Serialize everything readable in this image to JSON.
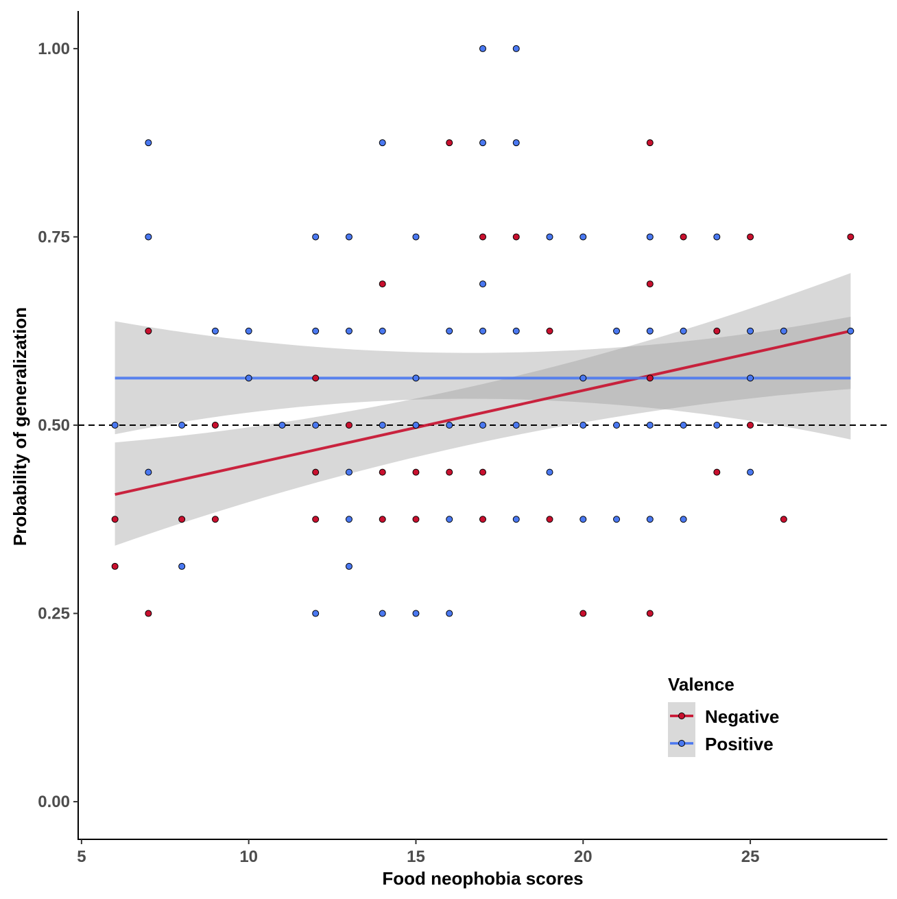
{
  "chart_data": {
    "type": "scatter",
    "title": "",
    "xlabel": "Food neophobia scores",
    "ylabel": "Probability of generalization",
    "xlim": [
      4.9,
      29.1
    ],
    "ylim": [
      -0.05,
      1.05
    ],
    "x_ticks": [
      5,
      10,
      15,
      20,
      25
    ],
    "x_tick_labels": [
      "5",
      "10",
      "15",
      "20",
      "25"
    ],
    "y_ticks": [
      0,
      0.25,
      0.5,
      0.75,
      1.0
    ],
    "y_tick_labels": [
      "0.00",
      "0.25",
      "0.50",
      "0.75",
      "1.00"
    ],
    "grid": false,
    "reference_line": {
      "y": 0.5,
      "style": "dashed"
    },
    "legend": {
      "title": "Valence",
      "position": "bottom-right"
    },
    "series": [
      {
        "name": "Negative",
        "color": "#c8102e",
        "points": [
          [
            6,
            0.375
          ],
          [
            6,
            0.3125
          ],
          [
            7,
            0.625
          ],
          [
            7,
            0.25
          ],
          [
            8,
            0.375
          ],
          [
            9,
            0.5
          ],
          [
            9,
            0.375
          ],
          [
            12,
            0.5625
          ],
          [
            12,
            0.4375
          ],
          [
            12,
            0.375
          ],
          [
            13,
            0.5
          ],
          [
            14,
            0.6875
          ],
          [
            14,
            0.4375
          ],
          [
            14,
            0.375
          ],
          [
            15,
            0.4375
          ],
          [
            15,
            0.375
          ],
          [
            16,
            0.875
          ],
          [
            16,
            0.4375
          ],
          [
            17,
            0.75
          ],
          [
            17,
            0.4375
          ],
          [
            17,
            0.375
          ],
          [
            18,
            0.75
          ],
          [
            19,
            0.625
          ],
          [
            19,
            0.375
          ],
          [
            20,
            0.25
          ],
          [
            22,
            0.875
          ],
          [
            22,
            0.6875
          ],
          [
            22,
            0.5625
          ],
          [
            22,
            0.25
          ],
          [
            23,
            0.75
          ],
          [
            24,
            0.625
          ],
          [
            24,
            0.4375
          ],
          [
            25,
            0.75
          ],
          [
            25,
            0.5
          ],
          [
            26,
            0.375
          ],
          [
            28,
            0.75
          ]
        ],
        "fit": {
          "x": [
            6,
            28
          ],
          "y": [
            0.408,
            0.625
          ]
        },
        "ci_band": {
          "x": [
            6,
            22,
            28
          ],
          "lower": [
            0.34,
            0.518,
            0.548
          ],
          "upper": [
            0.477,
            0.613,
            0.702
          ]
        }
      },
      {
        "name": "Positive",
        "color": "#4a78f0",
        "points": [
          [
            6,
            0.5
          ],
          [
            7,
            0.875
          ],
          [
            7,
            0.75
          ],
          [
            7,
            0.4375
          ],
          [
            8,
            0.5
          ],
          [
            8,
            0.3125
          ],
          [
            9,
            0.625
          ],
          [
            10,
            0.625
          ],
          [
            10,
            0.5625
          ],
          [
            11,
            0.5
          ],
          [
            12,
            0.75
          ],
          [
            12,
            0.625
          ],
          [
            12,
            0.5
          ],
          [
            12,
            0.25
          ],
          [
            13,
            0.75
          ],
          [
            13,
            0.625
          ],
          [
            13,
            0.4375
          ],
          [
            13,
            0.375
          ],
          [
            13,
            0.3125
          ],
          [
            14,
            0.875
          ],
          [
            14,
            0.625
          ],
          [
            14,
            0.5
          ],
          [
            14,
            0.25
          ],
          [
            15,
            0.75
          ],
          [
            15,
            0.5625
          ],
          [
            15,
            0.5
          ],
          [
            15,
            0.25
          ],
          [
            16,
            0.625
          ],
          [
            16,
            0.5
          ],
          [
            16,
            0.375
          ],
          [
            16,
            0.25
          ],
          [
            17,
            1.0
          ],
          [
            17,
            0.875
          ],
          [
            17,
            0.6875
          ],
          [
            17,
            0.625
          ],
          [
            17,
            0.5
          ],
          [
            18,
            1.0
          ],
          [
            18,
            0.875
          ],
          [
            18,
            0.625
          ],
          [
            18,
            0.5
          ],
          [
            18,
            0.375
          ],
          [
            19,
            0.75
          ],
          [
            19,
            0.4375
          ],
          [
            20,
            0.75
          ],
          [
            20,
            0.5625
          ],
          [
            20,
            0.5
          ],
          [
            20,
            0.375
          ],
          [
            21,
            0.625
          ],
          [
            21,
            0.5
          ],
          [
            21,
            0.375
          ],
          [
            22,
            0.75
          ],
          [
            22,
            0.625
          ],
          [
            22,
            0.5
          ],
          [
            22,
            0.375
          ],
          [
            23,
            0.625
          ],
          [
            23,
            0.5
          ],
          [
            23,
            0.375
          ],
          [
            24,
            0.75
          ],
          [
            24,
            0.5
          ],
          [
            25,
            0.625
          ],
          [
            25,
            0.5625
          ],
          [
            25,
            0.4375
          ],
          [
            26,
            0.625
          ],
          [
            28,
            0.625
          ]
        ],
        "fit": {
          "x": [
            6,
            28
          ],
          "y": [
            0.5625,
            0.5625
          ]
        },
        "ci_band": {
          "x": [
            6,
            17,
            28
          ],
          "lower": [
            0.488,
            0.535,
            0.481
          ],
          "upper": [
            0.638,
            0.596,
            0.644
          ]
        }
      }
    ]
  }
}
